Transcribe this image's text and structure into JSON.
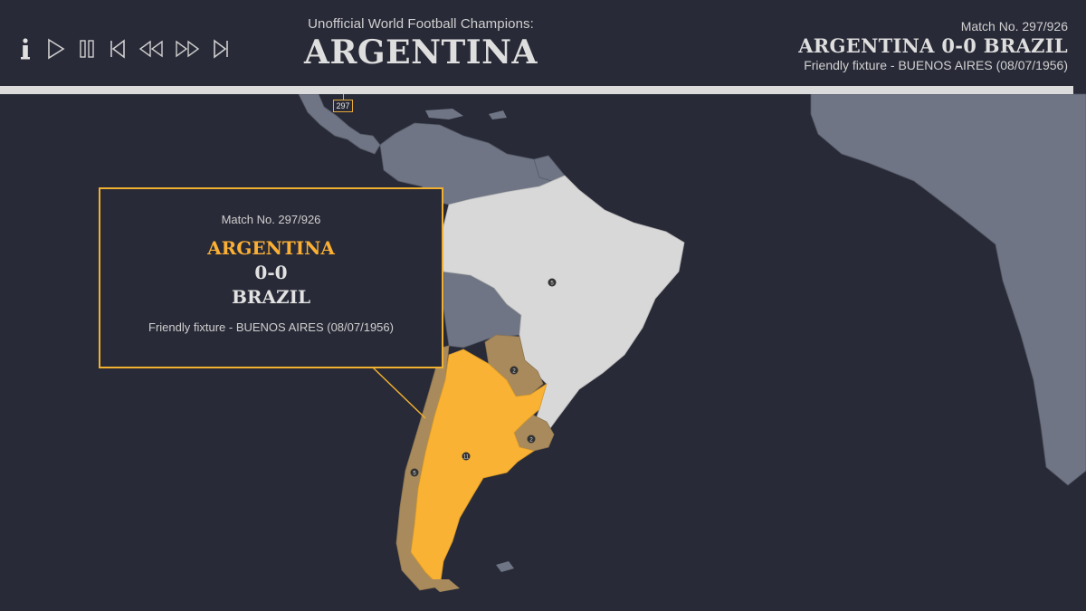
{
  "header": {
    "subtitle": "Unofficial World Football Champions:",
    "champion": "ARGENTINA"
  },
  "match_info": {
    "number": "Match No. 297/926",
    "result": "ARGENTINA 0-0 BRAZIL",
    "fixture": "Friendly fixture - BUENOS AIRES (08/07/1956)"
  },
  "timeline": {
    "current_match": "297",
    "total_matches": 926,
    "position": 0.3207
  },
  "controls": [
    {
      "name": "info-icon",
      "label": "i"
    },
    {
      "name": "play-icon"
    },
    {
      "name": "pause-icon"
    },
    {
      "name": "skip-to-start-icon"
    },
    {
      "name": "rewind-icon"
    },
    {
      "name": "fast-forward-icon"
    },
    {
      "name": "skip-to-end-icon"
    }
  ],
  "tooltip": {
    "match_number": "Match No. 297/926",
    "home_team": "ARGENTINA",
    "score": "0-0",
    "away_team": "BRAZIL",
    "fixture": "Friendly fixture - BUENOS AIRES (08/07/1956)"
  },
  "map": {
    "countries": [
      {
        "name": "Argentina",
        "status": "current-champion",
        "color": "#f9b233"
      },
      {
        "name": "Brazil",
        "status": "opponent",
        "color": "#d8d8d8"
      },
      {
        "name": "Chile",
        "status": "past-holder",
        "badge": "5",
        "color": "#a88a5c"
      },
      {
        "name": "Paraguay",
        "status": "past-holder",
        "badge": "2",
        "color": "#a88a5c"
      },
      {
        "name": "Uruguay",
        "status": "past-holder",
        "badge": "2",
        "color": "#a88a5c"
      }
    ],
    "argentina_badge": "11",
    "brazil_badge": "5",
    "colors": {
      "background": "#282a37",
      "land": "#6f7584",
      "accent": "#f0b030"
    }
  }
}
